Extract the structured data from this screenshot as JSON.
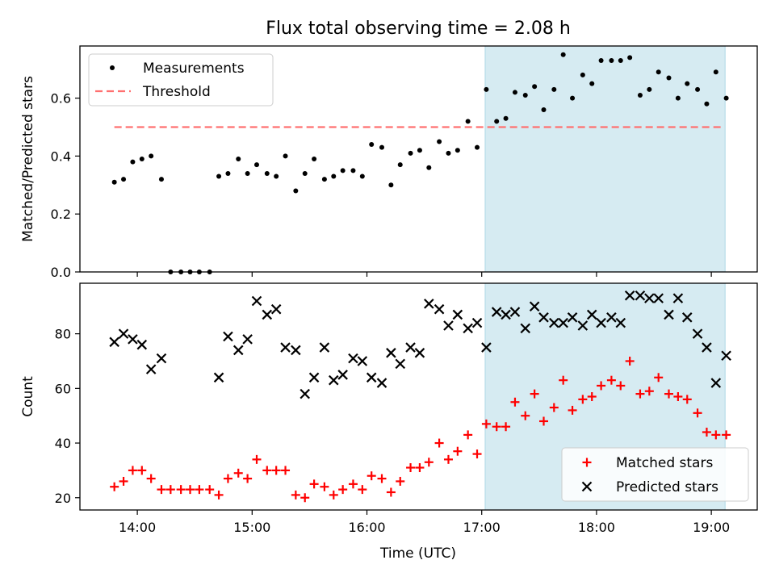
{
  "chart_data": {
    "title": "Flux total observing time = 2.08 h",
    "xlabel": "Time (UTC)",
    "x_unit": "hour of day (UTC)",
    "xlim": [
      13.5,
      19.4
    ],
    "x_ticks": [
      14,
      15,
      16,
      17,
      18,
      19
    ],
    "x_ticklabels": [
      "14:00",
      "15:00",
      "16:00",
      "17:00",
      "18:00",
      "19:00"
    ],
    "highlight_span": {
      "x": [
        17.03,
        19.12
      ],
      "color": "#add8e6"
    },
    "panels": [
      {
        "type": "scatter",
        "ylabel": "Matched/Predicted stars",
        "ylim": [
          0,
          0.78
        ],
        "y_ticks": [
          0.0,
          0.2,
          0.4,
          0.6
        ],
        "y_ticklabels": [
          "0.0",
          "0.2",
          "0.4",
          "0.6"
        ],
        "legend_position": "upper-left",
        "series": [
          {
            "name": "Measurements",
            "marker": "dot",
            "color": "#000000",
            "x": [
              13.8,
              13.88,
              13.96,
              14.04,
              14.12,
              14.21,
              14.29,
              14.38,
              14.46,
              14.54,
              14.63,
              14.71,
              14.79,
              14.88,
              14.96,
              15.04,
              15.13,
              15.21,
              15.29,
              15.38,
              15.46,
              15.54,
              15.63,
              15.71,
              15.79,
              15.88,
              15.96,
              16.04,
              16.13,
              16.21,
              16.29,
              16.38,
              16.46,
              16.54,
              16.63,
              16.71,
              16.79,
              16.88,
              16.96,
              17.04,
              17.13,
              17.21,
              17.29,
              17.38,
              17.46,
              17.54,
              17.63,
              17.71,
              17.79,
              17.88,
              17.96,
              18.04,
              18.13,
              18.21,
              18.29,
              18.38,
              18.46,
              18.54,
              18.63,
              18.71,
              18.79,
              18.88,
              18.96,
              19.04,
              19.13
            ],
            "y": [
              0.31,
              0.32,
              0.38,
              0.39,
              0.4,
              0.32,
              0.0,
              0.0,
              0.0,
              0.0,
              0.0,
              0.33,
              0.34,
              0.39,
              0.34,
              0.37,
              0.34,
              0.33,
              0.4,
              0.28,
              0.34,
              0.39,
              0.32,
              0.33,
              0.35,
              0.35,
              0.33,
              0.44,
              0.43,
              0.3,
              0.37,
              0.41,
              0.42,
              0.36,
              0.45,
              0.41,
              0.42,
              0.52,
              0.43,
              0.63,
              0.52,
              0.53,
              0.62,
              0.61,
              0.64,
              0.56,
              0.63,
              0.75,
              0.6,
              0.68,
              0.65,
              0.73,
              0.73,
              0.73,
              0.74,
              0.61,
              0.63,
              0.69,
              0.67,
              0.6,
              0.65,
              0.63,
              0.58,
              0.69,
              0.6
            ]
          },
          {
            "name": "Threshold",
            "line": "dashed",
            "color": "#ff7070",
            "x": [
              13.8,
              19.1
            ],
            "y": [
              0.5,
              0.5
            ]
          }
        ]
      },
      {
        "type": "scatter",
        "ylabel": "Count",
        "ylim": [
          15.5,
          98.5
        ],
        "y_ticks": [
          20,
          40,
          60,
          80
        ],
        "y_ticklabels": [
          "20",
          "40",
          "60",
          "80"
        ],
        "legend_position": "lower-right",
        "series": [
          {
            "name": "Matched stars",
            "marker": "plus",
            "color": "#ff0000",
            "x": [
              13.8,
              13.88,
              13.96,
              14.04,
              14.12,
              14.21,
              14.29,
              14.38,
              14.46,
              14.54,
              14.63,
              14.71,
              14.79,
              14.88,
              14.96,
              15.04,
              15.13,
              15.21,
              15.29,
              15.38,
              15.46,
              15.54,
              15.63,
              15.71,
              15.79,
              15.88,
              15.96,
              16.04,
              16.13,
              16.21,
              16.29,
              16.38,
              16.46,
              16.54,
              16.63,
              16.71,
              16.79,
              16.88,
              16.96,
              17.04,
              17.13,
              17.21,
              17.29,
              17.38,
              17.46,
              17.54,
              17.63,
              17.71,
              17.79,
              17.88,
              17.96,
              18.04,
              18.13,
              18.21,
              18.29,
              18.38,
              18.46,
              18.54,
              18.63,
              18.71,
              18.79,
              18.88,
              18.96,
              19.04,
              19.13
            ],
            "y": [
              24,
              26,
              30,
              30,
              27,
              23,
              23,
              23,
              23,
              23,
              23,
              21,
              27,
              29,
              27,
              34,
              30,
              30,
              30,
              21,
              20,
              25,
              24,
              21,
              23,
              25,
              23,
              28,
              27,
              22,
              26,
              31,
              31,
              33,
              40,
              34,
              37,
              43,
              36,
              47,
              46,
              46,
              55,
              50,
              58,
              48,
              53,
              63,
              52,
              56,
              57,
              61,
              63,
              61,
              70,
              58,
              59,
              64,
              58,
              57,
              56,
              51,
              44,
              43,
              43
            ]
          },
          {
            "name": "Predicted stars",
            "marker": "x",
            "color": "#000000",
            "x": [
              13.8,
              13.88,
              13.96,
              14.04,
              14.12,
              14.21,
              14.71,
              14.79,
              14.88,
              14.96,
              15.04,
              15.13,
              15.21,
              15.29,
              15.38,
              15.46,
              15.54,
              15.63,
              15.71,
              15.79,
              15.88,
              15.96,
              16.04,
              16.13,
              16.21,
              16.29,
              16.38,
              16.46,
              16.54,
              16.63,
              16.71,
              16.79,
              16.88,
              16.96,
              17.04,
              17.13,
              17.21,
              17.29,
              17.38,
              17.46,
              17.54,
              17.63,
              17.71,
              17.79,
              17.88,
              17.96,
              18.04,
              18.13,
              18.21,
              18.29,
              18.38,
              18.46,
              18.54,
              18.63,
              18.71,
              18.79,
              18.88,
              18.96,
              19.04,
              19.13
            ],
            "y": [
              77,
              80,
              78,
              76,
              67,
              71,
              64,
              79,
              74,
              78,
              92,
              87,
              89,
              75,
              74,
              58,
              64,
              75,
              63,
              65,
              71,
              70,
              64,
              62,
              73,
              69,
              75,
              73,
              91,
              89,
              83,
              87,
              82,
              84,
              75,
              88,
              87,
              88,
              82,
              90,
              86,
              84,
              84,
              86,
              83,
              87,
              84,
              86,
              84,
              94,
              94,
              93,
              93,
              87,
              93,
              86,
              80,
              75,
              62,
              72
            ]
          }
        ]
      }
    ]
  }
}
